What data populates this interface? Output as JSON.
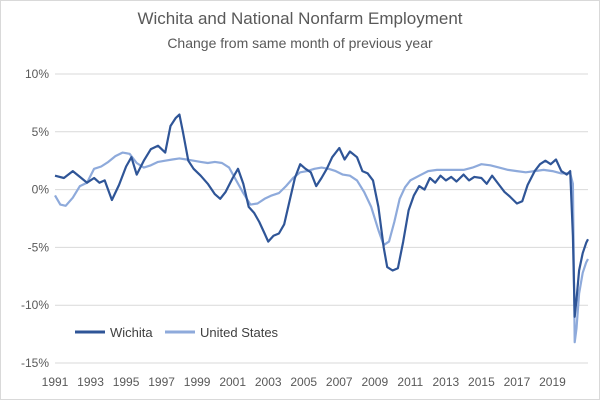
{
  "chart_data": {
    "type": "line",
    "title": "Wichita and National Nonfarm Employment",
    "subtitle": "Change from same month of previous year",
    "xlabel": "",
    "ylabel": "",
    "ylim": [
      -15,
      10
    ],
    "xlim": [
      1991,
      2021
    ],
    "grid": "horizontal",
    "legend_position": "bottom-left",
    "y_ticks": [
      10,
      5,
      0,
      -5,
      -10,
      -15
    ],
    "y_tick_labels": [
      "10%",
      "5%",
      "0%",
      "-5%",
      "-10%",
      "-15%"
    ],
    "x_ticks": [
      1991,
      1993,
      1995,
      1997,
      1999,
      2001,
      2003,
      2005,
      2007,
      2009,
      2011,
      2013,
      2015,
      2017,
      2019
    ],
    "x_tick_labels": [
      "1991",
      "1993",
      "1995",
      "1997",
      "1999",
      "2001",
      "2003",
      "2005",
      "2007",
      "2009",
      "2011",
      "2013",
      "2015",
      "2017",
      "2019"
    ],
    "series": [
      {
        "name": "Wichita",
        "color": "#2f5597",
        "points": [
          [
            1991.0,
            1.2
          ],
          [
            1991.5,
            1.0
          ],
          [
            1992.0,
            1.6
          ],
          [
            1992.4,
            1.1
          ],
          [
            1992.8,
            0.6
          ],
          [
            1993.2,
            1.0
          ],
          [
            1993.5,
            0.6
          ],
          [
            1993.8,
            0.8
          ],
          [
            1994.2,
            -0.9
          ],
          [
            1994.6,
            0.4
          ],
          [
            1995.0,
            2.0
          ],
          [
            1995.3,
            2.8
          ],
          [
            1995.6,
            1.3
          ],
          [
            1996.0,
            2.5
          ],
          [
            1996.4,
            3.5
          ],
          [
            1996.8,
            3.8
          ],
          [
            1997.2,
            3.2
          ],
          [
            1997.5,
            5.5
          ],
          [
            1997.8,
            6.2
          ],
          [
            1998.0,
            6.5
          ],
          [
            1998.2,
            5.0
          ],
          [
            1998.5,
            2.5
          ],
          [
            1998.8,
            1.8
          ],
          [
            1999.2,
            1.2
          ],
          [
            1999.6,
            0.5
          ],
          [
            2000.0,
            -0.4
          ],
          [
            2000.3,
            -0.8
          ],
          [
            2000.6,
            -0.2
          ],
          [
            2001.0,
            1.0
          ],
          [
            2001.3,
            1.8
          ],
          [
            2001.6,
            0.5
          ],
          [
            2001.9,
            -1.5
          ],
          [
            2002.2,
            -2.0
          ],
          [
            2002.5,
            -2.8
          ],
          [
            2002.8,
            -3.8
          ],
          [
            2003.0,
            -4.5
          ],
          [
            2003.3,
            -4.0
          ],
          [
            2003.6,
            -3.8
          ],
          [
            2003.9,
            -3.0
          ],
          [
            2004.2,
            -1.0
          ],
          [
            2004.5,
            1.0
          ],
          [
            2004.8,
            2.2
          ],
          [
            2005.1,
            1.8
          ],
          [
            2005.4,
            1.5
          ],
          [
            2005.7,
            0.3
          ],
          [
            2006.0,
            1.0
          ],
          [
            2006.3,
            1.8
          ],
          [
            2006.6,
            2.8
          ],
          [
            2007.0,
            3.6
          ],
          [
            2007.3,
            2.6
          ],
          [
            2007.6,
            3.3
          ],
          [
            2008.0,
            2.8
          ],
          [
            2008.3,
            1.6
          ],
          [
            2008.6,
            1.4
          ],
          [
            2008.9,
            0.8
          ],
          [
            2009.2,
            -1.5
          ],
          [
            2009.5,
            -5.0
          ],
          [
            2009.7,
            -6.7
          ],
          [
            2010.0,
            -7.0
          ],
          [
            2010.3,
            -6.8
          ],
          [
            2010.6,
            -4.5
          ],
          [
            2010.9,
            -1.8
          ],
          [
            2011.2,
            -0.5
          ],
          [
            2011.5,
            0.3
          ],
          [
            2011.8,
            0.0
          ],
          [
            2012.1,
            1.0
          ],
          [
            2012.4,
            0.6
          ],
          [
            2012.7,
            1.2
          ],
          [
            2013.0,
            0.8
          ],
          [
            2013.3,
            1.1
          ],
          [
            2013.6,
            0.7
          ],
          [
            2014.0,
            1.3
          ],
          [
            2014.3,
            0.8
          ],
          [
            2014.6,
            1.1
          ],
          [
            2015.0,
            1.0
          ],
          [
            2015.3,
            0.5
          ],
          [
            2015.6,
            1.2
          ],
          [
            2016.0,
            0.4
          ],
          [
            2016.3,
            -0.2
          ],
          [
            2016.6,
            -0.6
          ],
          [
            2017.0,
            -1.2
          ],
          [
            2017.3,
            -1.0
          ],
          [
            2017.6,
            0.4
          ],
          [
            2018.0,
            1.6
          ],
          [
            2018.3,
            2.2
          ],
          [
            2018.6,
            2.5
          ],
          [
            2018.9,
            2.2
          ],
          [
            2019.2,
            2.6
          ],
          [
            2019.5,
            1.6
          ],
          [
            2019.8,
            1.3
          ],
          [
            2020.0,
            1.6
          ],
          [
            2020.15,
            -4.0
          ],
          [
            2020.25,
            -11.0
          ],
          [
            2020.35,
            -9.5
          ],
          [
            2020.5,
            -7.0
          ],
          [
            2020.7,
            -5.5
          ],
          [
            2020.9,
            -4.6
          ],
          [
            2021.0,
            -4.3
          ]
        ]
      },
      {
        "name": "United States",
        "color": "#8eaadb",
        "points": [
          [
            1991.0,
            -0.5
          ],
          [
            1991.3,
            -1.3
          ],
          [
            1991.6,
            -1.4
          ],
          [
            1992.0,
            -0.7
          ],
          [
            1992.4,
            0.3
          ],
          [
            1992.8,
            0.6
          ],
          [
            1993.2,
            1.8
          ],
          [
            1993.6,
            2.0
          ],
          [
            1994.0,
            2.4
          ],
          [
            1994.4,
            2.9
          ],
          [
            1994.8,
            3.2
          ],
          [
            1995.2,
            3.1
          ],
          [
            1995.6,
            2.3
          ],
          [
            1996.0,
            1.9
          ],
          [
            1996.4,
            2.1
          ],
          [
            1996.8,
            2.4
          ],
          [
            1997.2,
            2.5
          ],
          [
            1997.6,
            2.6
          ],
          [
            1998.0,
            2.7
          ],
          [
            1998.4,
            2.6
          ],
          [
            1998.8,
            2.5
          ],
          [
            1999.2,
            2.4
          ],
          [
            1999.6,
            2.3
          ],
          [
            2000.0,
            2.4
          ],
          [
            2000.4,
            2.3
          ],
          [
            2000.8,
            1.9
          ],
          [
            2001.2,
            0.8
          ],
          [
            2001.6,
            -0.3
          ],
          [
            2002.0,
            -1.3
          ],
          [
            2002.4,
            -1.2
          ],
          [
            2002.8,
            -0.8
          ],
          [
            2003.2,
            -0.5
          ],
          [
            2003.6,
            -0.3
          ],
          [
            2004.0,
            0.3
          ],
          [
            2004.4,
            1.0
          ],
          [
            2004.8,
            1.5
          ],
          [
            2005.2,
            1.6
          ],
          [
            2005.6,
            1.8
          ],
          [
            2006.0,
            1.9
          ],
          [
            2006.4,
            1.8
          ],
          [
            2006.8,
            1.6
          ],
          [
            2007.2,
            1.3
          ],
          [
            2007.6,
            1.2
          ],
          [
            2008.0,
            0.8
          ],
          [
            2008.4,
            -0.2
          ],
          [
            2008.8,
            -1.5
          ],
          [
            2009.2,
            -3.5
          ],
          [
            2009.5,
            -4.8
          ],
          [
            2009.8,
            -4.5
          ],
          [
            2010.1,
            -2.8
          ],
          [
            2010.4,
            -0.8
          ],
          [
            2010.7,
            0.2
          ],
          [
            2011.0,
            0.8
          ],
          [
            2011.5,
            1.2
          ],
          [
            2012.0,
            1.6
          ],
          [
            2012.5,
            1.7
          ],
          [
            2013.0,
            1.7
          ],
          [
            2013.5,
            1.7
          ],
          [
            2014.0,
            1.7
          ],
          [
            2014.5,
            1.9
          ],
          [
            2015.0,
            2.2
          ],
          [
            2015.5,
            2.1
          ],
          [
            2016.0,
            1.9
          ],
          [
            2016.5,
            1.7
          ],
          [
            2017.0,
            1.6
          ],
          [
            2017.5,
            1.5
          ],
          [
            2018.0,
            1.6
          ],
          [
            2018.5,
            1.7
          ],
          [
            2019.0,
            1.6
          ],
          [
            2019.5,
            1.4
          ],
          [
            2020.0,
            1.4
          ],
          [
            2020.15,
            0.5
          ],
          [
            2020.25,
            -13.2
          ],
          [
            2020.35,
            -12.0
          ],
          [
            2020.5,
            -9.0
          ],
          [
            2020.7,
            -7.2
          ],
          [
            2020.9,
            -6.3
          ],
          [
            2021.0,
            -6.0
          ]
        ]
      }
    ]
  }
}
